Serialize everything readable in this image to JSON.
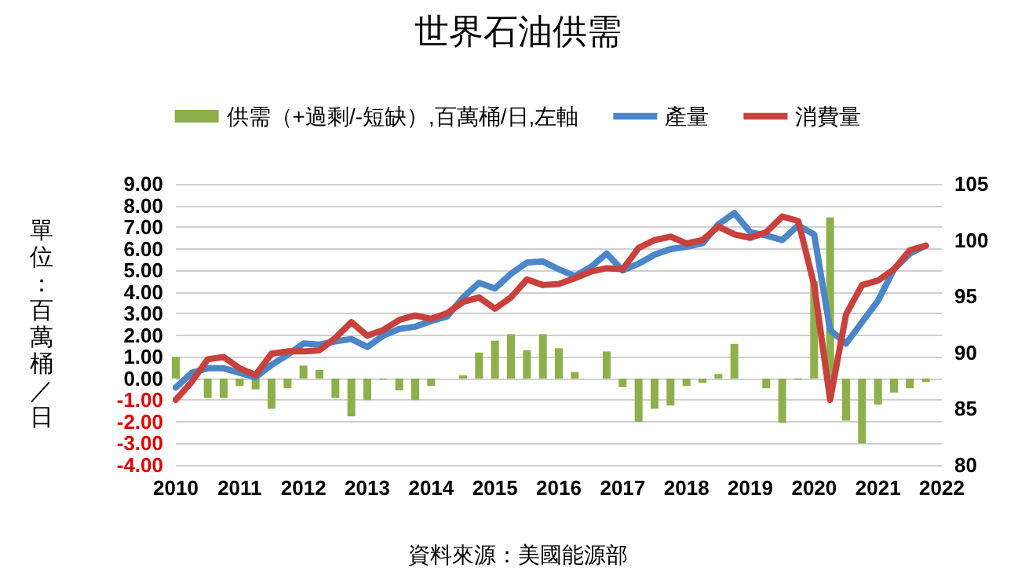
{
  "chart_data": {
    "type": "bar",
    "title": "世界石油供需",
    "ylabel": "單位：百萬桶／日",
    "annotations": [
      "資料來源：美國能源部"
    ],
    "x": [
      2010,
      2010.25,
      2010.5,
      2010.75,
      2011,
      2011.25,
      2011.5,
      2011.75,
      2012,
      2012.25,
      2012.5,
      2012.75,
      2013,
      2013.25,
      2013.5,
      2013.75,
      2014,
      2014.25,
      2014.5,
      2014.75,
      2015,
      2015.25,
      2015.5,
      2015.75,
      2016,
      2016.25,
      2016.5,
      2016.75,
      2017,
      2017.25,
      2017.5,
      2017.75,
      2018,
      2018.25,
      2018.5,
      2018.75,
      2019,
      2019.25,
      2019.5,
      2019.75,
      2020,
      2020.25,
      2020.5,
      2020.75,
      2021,
      2021.25,
      2021.5,
      2021.75
    ],
    "series": [
      {
        "name": "供需（+過剩/-短缺）,百萬桶/日,左軸",
        "color": "#8db04a",
        "values": [
          1.0,
          null,
          -0.9,
          -0.9,
          -0.35,
          -0.5,
          -1.4,
          -0.45,
          0.6,
          0.4,
          -0.9,
          -1.75,
          -1.0,
          -0.05,
          -0.55,
          -1.0,
          -0.35,
          0,
          0.15,
          1.2,
          1.75,
          2.05,
          1.3,
          2.05,
          1.4,
          0.3,
          0,
          1.25,
          -0.4,
          -2.0,
          -1.4,
          -1.25,
          -0.35,
          -0.2,
          0.2,
          1.6,
          0,
          -0.45,
          -2.05,
          -0.05,
          4.5,
          7.45,
          -1.95,
          -3.0,
          -1.2,
          -0.65,
          -0.45,
          -0.15
        ]
      },
      {
        "name": "產量",
        "type": "line",
        "axis": "y2",
        "color": "#4a86c8",
        "values": [
          86.9,
          88.2,
          88.6,
          88.6,
          88.2,
          87.8,
          88.9,
          89.8,
          90.8,
          90.7,
          91.0,
          91.2,
          90.5,
          91.5,
          92.1,
          92.3,
          92.8,
          93.2,
          94.9,
          96.2,
          95.7,
          97.0,
          98.0,
          98.1,
          97.4,
          96.8,
          97.6,
          98.8,
          97.3,
          97.9,
          98.7,
          99.2,
          99.4,
          99.7,
          101.4,
          102.4,
          100.7,
          100.4,
          100.0,
          101.3,
          100.5,
          92.0,
          90.8,
          92.7,
          94.6,
          97.4,
          98.8,
          99.5
        ]
      },
      {
        "name": "消費量",
        "type": "line",
        "axis": "y2",
        "color": "#c8413c",
        "values": [
          85.8,
          87.4,
          89.4,
          89.6,
          88.6,
          88.0,
          89.9,
          90.1,
          90.1,
          90.2,
          91.3,
          92.7,
          91.5,
          92.0,
          92.9,
          93.3,
          93.0,
          93.5,
          94.5,
          94.9,
          93.9,
          94.9,
          96.5,
          96.0,
          96.1,
          96.6,
          97.2,
          97.5,
          97.4,
          99.3,
          100.0,
          100.3,
          99.7,
          100.0,
          101.2,
          100.5,
          100.2,
          100.7,
          102.1,
          101.7,
          96.0,
          85.8,
          93.4,
          96.0,
          96.4,
          97.4,
          99.1,
          99.5
        ]
      }
    ],
    "xlim": [
      2010,
      2022
    ],
    "xticks": [
      2010,
      2011,
      2012,
      2013,
      2014,
      2015,
      2016,
      2017,
      2018,
      2019,
      2020,
      2021,
      2022
    ],
    "ylim": [
      -4,
      9
    ],
    "yticks": [
      {
        "value": -4,
        "label": "-4.00"
      },
      {
        "value": -3,
        "label": "-3.00"
      },
      {
        "value": -2,
        "label": "-2.00"
      },
      {
        "value": -1,
        "label": "-1.00"
      },
      {
        "value": 0,
        "label": "0.00"
      },
      {
        "value": 1,
        "label": "1.00"
      },
      {
        "value": 2,
        "label": "2.00"
      },
      {
        "value": 3,
        "label": "3.00"
      },
      {
        "value": 4,
        "label": "4.00"
      },
      {
        "value": 5,
        "label": "5.00"
      },
      {
        "value": 6,
        "label": "6.00"
      },
      {
        "value": 7,
        "label": "7.00"
      },
      {
        "value": 8,
        "label": "8.00"
      },
      {
        "value": 9,
        "label": "9.00"
      }
    ],
    "y2lim": [
      80,
      105
    ],
    "y2ticks": [
      80,
      85,
      90,
      95,
      100,
      105
    ],
    "grid": "y",
    "legend": "top",
    "line_style": "solid"
  }
}
